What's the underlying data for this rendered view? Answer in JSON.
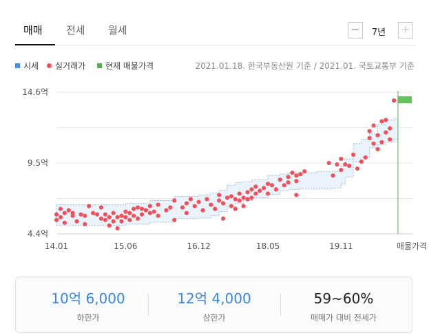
{
  "tabs": [
    {
      "label": "매매",
      "active": true
    },
    {
      "label": "전세",
      "active": false
    },
    {
      "label": "월세",
      "active": false
    }
  ],
  "period": {
    "minus": "−",
    "value": "7년",
    "plus": "+"
  },
  "legend": [
    {
      "label": "시세",
      "color": "#4a90e2",
      "shape": "square"
    },
    {
      "label": "실거래가",
      "color": "#f0515a",
      "shape": "dot"
    },
    {
      "label": "현재 매물가격",
      "color": "#4bb543",
      "shape": "square"
    }
  ],
  "source": "2021.01.18. 한국부동산원 기준 / 2021.01. 국토교통부 기준",
  "colors": {
    "accent": "#3a86e0",
    "dot": "#f0515a",
    "band_fill": "#eaf3fb",
    "band_stroke": "#93b9de",
    "current": "#4bb543"
  },
  "chart_data": {
    "type": "scatter",
    "y_unit": "억",
    "ylim": [
      4.4,
      14.6
    ],
    "y_ticks": [
      "14.6억",
      "9.5억",
      "4.4억"
    ],
    "x_ticks": [
      "14.01",
      "15.06",
      "16.12",
      "18.05",
      "19.11",
      "매물가격"
    ],
    "x_range": [
      "2014-01",
      "2021-01"
    ],
    "grid": true,
    "market_price_band": {
      "dates": [
        "2014-01",
        "2015-06",
        "2015-12",
        "2016-06",
        "2016-12",
        "2017-03",
        "2017-05",
        "2017-07",
        "2017-09",
        "2017-11",
        "2018-01",
        "2018-05",
        "2018-08",
        "2018-10",
        "2019-01",
        "2019-05",
        "2019-09",
        "2019-11",
        "2019-12",
        "2020-02",
        "2020-04",
        "2020-06",
        "2020-08",
        "2020-10",
        "2020-12",
        "2021-01"
      ],
      "lower": [
        5.0,
        5.1,
        5.25,
        5.5,
        5.55,
        5.7,
        6.0,
        6.35,
        6.6,
        6.8,
        7.0,
        7.25,
        7.5,
        7.6,
        7.65,
        7.65,
        7.7,
        8.0,
        8.5,
        9.6,
        9.9,
        10.6,
        10.8,
        11.0,
        11.2,
        11.3
      ],
      "upper": [
        6.5,
        6.6,
        6.8,
        7.1,
        7.2,
        7.35,
        7.55,
        7.9,
        8.1,
        8.15,
        8.3,
        8.6,
        8.7,
        8.8,
        8.8,
        8.9,
        8.9,
        9.3,
        9.8,
        10.9,
        11.2,
        11.6,
        12.3,
        12.6,
        12.7,
        12.8
      ]
    },
    "transactions": [
      [
        "2014-01",
        5.8
      ],
      [
        "2014-01",
        5.4
      ],
      [
        "2014-02",
        6.2
      ],
      [
        "2014-02",
        5.6
      ],
      [
        "2014-03",
        5.9
      ],
      [
        "2014-03",
        5.2
      ],
      [
        "2014-04",
        6.1
      ],
      [
        "2014-05",
        5.9
      ],
      [
        "2014-05",
        5.7
      ],
      [
        "2014-06",
        5.3
      ],
      [
        "2014-07",
        5.8
      ],
      [
        "2014-08",
        5.7
      ],
      [
        "2014-08",
        5.1
      ],
      [
        "2014-09",
        6.4
      ],
      [
        "2014-10",
        5.9
      ],
      [
        "2014-11",
        5.8
      ],
      [
        "2014-12",
        6.3
      ],
      [
        "2014-12",
        5.5
      ],
      [
        "2015-01",
        5.4
      ],
      [
        "2015-01",
        5.8
      ],
      [
        "2015-02",
        5.6
      ],
      [
        "2015-02",
        5.0
      ],
      [
        "2015-03",
        5.3
      ],
      [
        "2015-03",
        5.9
      ],
      [
        "2015-04",
        5.6
      ],
      [
        "2015-04",
        4.8
      ],
      [
        "2015-05",
        5.7
      ],
      [
        "2015-05",
        5.3
      ],
      [
        "2015-06",
        6.0
      ],
      [
        "2015-06",
        5.6
      ],
      [
        "2015-07",
        5.9
      ],
      [
        "2015-07",
        5.4
      ],
      [
        "2015-08",
        6.2
      ],
      [
        "2015-08",
        5.7
      ],
      [
        "2015-09",
        6.3
      ],
      [
        "2015-09",
        5.5
      ],
      [
        "2015-10",
        5.8
      ],
      [
        "2015-10",
        6.2
      ],
      [
        "2015-11",
        6.1
      ],
      [
        "2015-12",
        5.9
      ],
      [
        "2015-12",
        6.4
      ],
      [
        "2016-01",
        6.0
      ],
      [
        "2016-02",
        6.5
      ],
      [
        "2016-02",
        5.7
      ],
      [
        "2016-04",
        6.1
      ],
      [
        "2016-05",
        6.3
      ],
      [
        "2016-06",
        6.8
      ],
      [
        "2016-06",
        5.4
      ],
      [
        "2016-08",
        6.3
      ],
      [
        "2016-09",
        5.9
      ],
      [
        "2016-09",
        6.6
      ],
      [
        "2016-10",
        6.9
      ],
      [
        "2016-11",
        6.4
      ],
      [
        "2016-12",
        6.7
      ],
      [
        "2017-01",
        6.1
      ],
      [
        "2017-02",
        6.9
      ],
      [
        "2017-03",
        6.5
      ],
      [
        "2017-04",
        6.2
      ],
      [
        "2017-05",
        6.8
      ],
      [
        "2017-05",
        7.2
      ],
      [
        "2017-06",
        6.6
      ],
      [
        "2017-06",
        5.5
      ],
      [
        "2017-07",
        7.0
      ],
      [
        "2017-08",
        6.4
      ],
      [
        "2017-08",
        7.1
      ],
      [
        "2017-09",
        6.9
      ],
      [
        "2017-09",
        6.2
      ],
      [
        "2017-10",
        7.3
      ],
      [
        "2017-10",
        6.8
      ],
      [
        "2017-11",
        7.0
      ],
      [
        "2017-11",
        6.4
      ],
      [
        "2017-12",
        7.4
      ],
      [
        "2017-12",
        6.9
      ],
      [
        "2018-01",
        7.6
      ],
      [
        "2018-01",
        7.0
      ],
      [
        "2018-02",
        7.3
      ],
      [
        "2018-02",
        7.8
      ],
      [
        "2018-03",
        7.5
      ],
      [
        "2018-04",
        7.7
      ],
      [
        "2018-05",
        7.3
      ],
      [
        "2018-05",
        8.0
      ],
      [
        "2018-06",
        7.9
      ],
      [
        "2018-07",
        7.6
      ],
      [
        "2018-08",
        8.3
      ],
      [
        "2018-09",
        7.9
      ],
      [
        "2018-10",
        8.5
      ],
      [
        "2018-10",
        8.1
      ],
      [
        "2018-11",
        8.8
      ],
      [
        "2018-12",
        8.6
      ],
      [
        "2018-12",
        8.2
      ],
      [
        "2018-12",
        7.2
      ],
      [
        "2019-01",
        8.7
      ],
      [
        "2019-02",
        8.9
      ],
      [
        "2019-08",
        9.5
      ],
      [
        "2019-09",
        8.6
      ],
      [
        "2019-10",
        9.4
      ],
      [
        "2019-11",
        9.8
      ],
      [
        "2019-11",
        9.0
      ],
      [
        "2019-12",
        9.4
      ],
      [
        "2020-01",
        9.3
      ],
      [
        "2020-02",
        10.1
      ],
      [
        "2020-03",
        9.1
      ],
      [
        "2020-04",
        9.6
      ],
      [
        "2020-05",
        9.9
      ],
      [
        "2020-06",
        11.3
      ],
      [
        "2020-06",
        11.8
      ],
      [
        "2020-07",
        10.9
      ],
      [
        "2020-07",
        12.2
      ],
      [
        "2020-08",
        10.5
      ],
      [
        "2020-08",
        11.5
      ],
      [
        "2020-09",
        12.5
      ],
      [
        "2020-09",
        11.0
      ],
      [
        "2020-10",
        12.6
      ],
      [
        "2020-10",
        11.7
      ],
      [
        "2020-11",
        11.2
      ],
      [
        "2020-11",
        12.0
      ],
      [
        "2020-12",
        14.0
      ]
    ],
    "current_listing": {
      "low": 13.8,
      "high": 14.3
    }
  },
  "summary": [
    {
      "value": "10억 6,000",
      "label": "하한가"
    },
    {
      "value": "12억 4,000",
      "label": "상한가"
    },
    {
      "value": "59~60%",
      "label": "매매가 대비 전세가"
    }
  ]
}
